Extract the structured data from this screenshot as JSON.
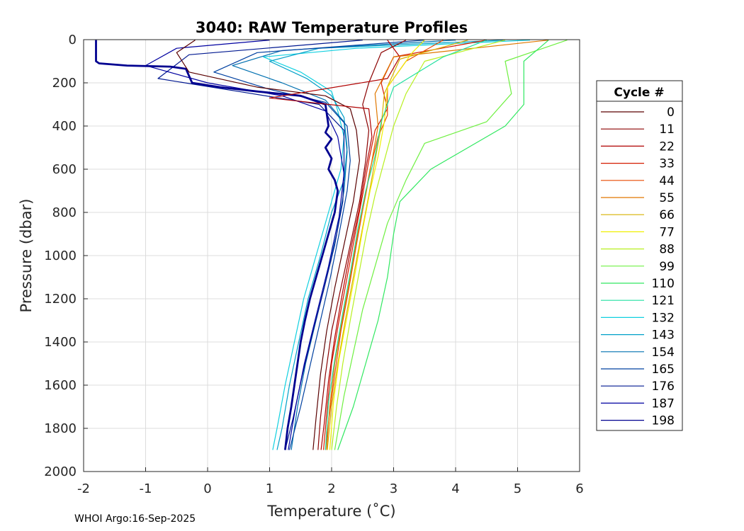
{
  "chart_data": {
    "type": "line",
    "title": "3040: RAW Temperature Profiles",
    "xlabel": "Temperature (˚C)",
    "ylabel": "Pressure (dbar)",
    "xlim": [
      -2,
      6
    ],
    "ylim": [
      0,
      2000
    ],
    "y_reversed": true,
    "grid": true,
    "x_ticks": [
      "-2",
      "-1",
      "0",
      "1",
      "2",
      "3",
      "4",
      "5",
      "6"
    ],
    "y_ticks": [
      "0",
      "200",
      "400",
      "600",
      "800",
      "1000",
      "1200",
      "1400",
      "1600",
      "1800",
      "2000"
    ],
    "legend": {
      "title": "Cycle #",
      "placement": "right-outside",
      "entries": [
        {
          "label": "0",
          "color": "#5a0000"
        },
        {
          "label": "11",
          "color": "#8b0000"
        },
        {
          "label": "22",
          "color": "#b00000"
        },
        {
          "label": "33",
          "color": "#d41a00"
        },
        {
          "label": "44",
          "color": "#e84800"
        },
        {
          "label": "55",
          "color": "#e07800"
        },
        {
          "label": "66",
          "color": "#d6b000"
        },
        {
          "label": "77",
          "color": "#f0f000"
        },
        {
          "label": "88",
          "color": "#b8f020"
        },
        {
          "label": "99",
          "color": "#6ef040"
        },
        {
          "label": "110",
          "color": "#30e860"
        },
        {
          "label": "121",
          "color": "#20e0a0"
        },
        {
          "label": "132",
          "color": "#10d0e0"
        },
        {
          "label": "143",
          "color": "#00a0c8"
        },
        {
          "label": "154",
          "color": "#0070b0"
        },
        {
          "label": "165",
          "color": "#0040a0"
        },
        {
          "label": "176",
          "color": "#001890"
        },
        {
          "label": "187",
          "color": "#0000a0"
        },
        {
          "label": "198",
          "color": "#000090"
        }
      ]
    },
    "series": [
      {
        "name": "132",
        "color": "#10d0e0",
        "points": [
          [
            5.2,
            2
          ],
          [
            2.4,
            40
          ],
          [
            0.9,
            80
          ],
          [
            1.5,
            150
          ],
          [
            2.0,
            240
          ],
          [
            2.1,
            330
          ],
          [
            2.2,
            450
          ],
          [
            2.15,
            600
          ],
          [
            1.95,
            800
          ],
          [
            1.75,
            1000
          ],
          [
            1.55,
            1200
          ],
          [
            1.4,
            1400
          ],
          [
            1.25,
            1600
          ],
          [
            1.12,
            1800
          ],
          [
            1.05,
            1900
          ]
        ]
      },
      {
        "name": "143",
        "color": "#00a0c8",
        "points": [
          [
            4.8,
            2
          ],
          [
            1.8,
            40
          ],
          [
            1.0,
            100
          ],
          [
            1.6,
            180
          ],
          [
            2.0,
            260
          ],
          [
            2.2,
            360
          ],
          [
            2.25,
            500
          ],
          [
            2.2,
            650
          ],
          [
            2.0,
            800
          ],
          [
            1.82,
            1000
          ],
          [
            1.62,
            1200
          ],
          [
            1.47,
            1400
          ],
          [
            1.32,
            1600
          ],
          [
            1.2,
            1800
          ],
          [
            1.12,
            1900
          ]
        ]
      },
      {
        "name": "154",
        "color": "#0070b0",
        "points": [
          [
            4.0,
            2
          ],
          [
            1.2,
            50
          ],
          [
            0.4,
            120
          ],
          [
            1.2,
            200
          ],
          [
            1.9,
            280
          ],
          [
            2.2,
            380
          ],
          [
            2.25,
            520
          ],
          [
            2.2,
            700
          ],
          [
            2.08,
            900
          ],
          [
            1.92,
            1100
          ],
          [
            1.75,
            1300
          ],
          [
            1.58,
            1500
          ],
          [
            1.45,
            1700
          ],
          [
            1.35,
            1900
          ]
        ]
      },
      {
        "name": "165",
        "color": "#0040a0",
        "points": [
          [
            3.5,
            2
          ],
          [
            0.8,
            60
          ],
          [
            0.1,
            150
          ],
          [
            1.0,
            230
          ],
          [
            1.9,
            290
          ],
          [
            2.25,
            400
          ],
          [
            2.3,
            560
          ],
          [
            2.25,
            700
          ],
          [
            2.12,
            900
          ],
          [
            1.98,
            1100
          ],
          [
            1.82,
            1300
          ],
          [
            1.66,
            1500
          ],
          [
            1.5,
            1700
          ],
          [
            1.32,
            1900
          ]
        ]
      },
      {
        "name": "176",
        "color": "#001890",
        "points": [
          [
            2.5,
            2
          ],
          [
            -0.3,
            70
          ],
          [
            -0.8,
            180
          ],
          [
            0.5,
            240
          ],
          [
            1.8,
            300
          ],
          [
            2.2,
            420
          ],
          [
            2.2,
            600
          ],
          [
            2.18,
            750
          ],
          [
            2.05,
            950
          ],
          [
            1.88,
            1150
          ],
          [
            1.7,
            1350
          ],
          [
            1.53,
            1550
          ],
          [
            1.38,
            1750
          ],
          [
            1.25,
            1900
          ]
        ]
      },
      {
        "name": "187",
        "color": "#0000a0",
        "points": [
          [
            1.0,
            2
          ],
          [
            -0.5,
            40
          ],
          [
            -1.0,
            120
          ],
          [
            0.0,
            200
          ],
          [
            1.2,
            260
          ],
          [
            1.9,
            330
          ],
          [
            2.1,
            450
          ],
          [
            2.2,
            620
          ],
          [
            2.12,
            820
          ],
          [
            1.95,
            1050
          ],
          [
            1.75,
            1280
          ],
          [
            1.56,
            1500
          ],
          [
            1.42,
            1700
          ],
          [
            1.3,
            1900
          ]
        ]
      },
      {
        "name": "198",
        "color": "#000090",
        "width": 2.8,
        "points": [
          [
            -1.8,
            2
          ],
          [
            -1.8,
            100
          ],
          [
            -1.75,
            110
          ],
          [
            -1.3,
            120
          ],
          [
            -0.6,
            125
          ],
          [
            -0.35,
            135
          ],
          [
            -0.25,
            200
          ],
          [
            0.2,
            220
          ],
          [
            0.8,
            240
          ],
          [
            1.5,
            260
          ],
          [
            1.9,
            300
          ],
          [
            1.95,
            400
          ],
          [
            1.9,
            430
          ],
          [
            2.0,
            460
          ],
          [
            1.9,
            500
          ],
          [
            2.0,
            550
          ],
          [
            1.95,
            600
          ],
          [
            2.05,
            650
          ],
          [
            2.1,
            700
          ],
          [
            2.05,
            800
          ],
          [
            1.95,
            900
          ],
          [
            1.85,
            1000
          ],
          [
            1.75,
            1100
          ],
          [
            1.65,
            1200
          ],
          [
            1.57,
            1300
          ],
          [
            1.5,
            1400
          ],
          [
            1.45,
            1500
          ],
          [
            1.4,
            1600
          ],
          [
            1.35,
            1700
          ],
          [
            1.29,
            1800
          ],
          [
            1.25,
            1900
          ]
        ]
      },
      {
        "name": "0",
        "color": "#5a0000",
        "points": [
          [
            -0.2,
            2
          ],
          [
            -0.5,
            60
          ],
          [
            -0.3,
            150
          ],
          [
            0.8,
            220
          ],
          [
            1.9,
            260
          ],
          [
            2.3,
            320
          ],
          [
            2.4,
            420
          ],
          [
            2.45,
            560
          ],
          [
            2.35,
            750
          ],
          [
            2.2,
            950
          ],
          [
            2.05,
            1150
          ],
          [
            1.92,
            1350
          ],
          [
            1.82,
            1550
          ],
          [
            1.75,
            1750
          ],
          [
            1.7,
            1900
          ]
        ]
      },
      {
        "name": "11",
        "color": "#8b0000",
        "points": [
          [
            3.2,
            2
          ],
          [
            2.8,
            60
          ],
          [
            2.6,
            200
          ],
          [
            2.5,
            300
          ],
          [
            2.6,
            420
          ],
          [
            2.55,
            560
          ],
          [
            2.45,
            750
          ],
          [
            2.3,
            950
          ],
          [
            2.15,
            1150
          ],
          [
            2.0,
            1350
          ],
          [
            1.9,
            1550
          ],
          [
            1.82,
            1750
          ],
          [
            1.78,
            1900
          ]
        ]
      },
      {
        "name": "22",
        "color": "#b00000",
        "points": [
          [
            2.9,
            2
          ],
          [
            3.1,
            80
          ],
          [
            2.9,
            180
          ],
          [
            1.0,
            270
          ],
          [
            2.6,
            320
          ],
          [
            2.65,
            450
          ],
          [
            2.55,
            600
          ],
          [
            2.45,
            780
          ],
          [
            2.3,
            980
          ],
          [
            2.17,
            1180
          ],
          [
            2.05,
            1380
          ],
          [
            1.95,
            1580
          ],
          [
            1.88,
            1780
          ],
          [
            1.83,
            1900
          ]
        ]
      },
      {
        "name": "33",
        "color": "#d41a00",
        "points": [
          [
            4.5,
            2
          ],
          [
            3.0,
            80
          ],
          [
            2.8,
            200
          ],
          [
            2.9,
            320
          ],
          [
            2.7,
            420
          ],
          [
            2.6,
            560
          ],
          [
            2.5,
            720
          ],
          [
            2.38,
            900
          ],
          [
            2.25,
            1100
          ],
          [
            2.12,
            1300
          ],
          [
            2.0,
            1500
          ],
          [
            1.93,
            1700
          ],
          [
            1.87,
            1900
          ]
        ]
      },
      {
        "name": "44",
        "color": "#e84800",
        "points": [
          [
            3.8,
            2
          ],
          [
            3.2,
            100
          ],
          [
            2.9,
            220
          ],
          [
            2.9,
            350
          ],
          [
            2.75,
            450
          ],
          [
            2.62,
            600
          ],
          [
            2.52,
            760
          ],
          [
            2.4,
            950
          ],
          [
            2.28,
            1150
          ],
          [
            2.15,
            1350
          ],
          [
            2.05,
            1550
          ],
          [
            1.96,
            1750
          ],
          [
            1.9,
            1900
          ]
        ]
      },
      {
        "name": "55",
        "color": "#e07800",
        "points": [
          [
            5.5,
            2
          ],
          [
            3.0,
            80
          ],
          [
            2.7,
            250
          ],
          [
            2.75,
            400
          ],
          [
            2.65,
            560
          ],
          [
            2.55,
            720
          ],
          [
            2.42,
            900
          ],
          [
            2.3,
            1100
          ],
          [
            2.17,
            1300
          ],
          [
            2.05,
            1500
          ],
          [
            1.97,
            1700
          ],
          [
            1.92,
            1900
          ]
        ]
      },
      {
        "name": "66",
        "color": "#d6b000",
        "points": [
          [
            4.2,
            2
          ],
          [
            3.1,
            90
          ],
          [
            2.85,
            250
          ],
          [
            2.8,
            400
          ],
          [
            2.7,
            560
          ],
          [
            2.6,
            720
          ],
          [
            2.48,
            900
          ],
          [
            2.35,
            1100
          ],
          [
            2.22,
            1300
          ],
          [
            2.1,
            1500
          ],
          [
            2.0,
            1700
          ],
          [
            1.93,
            1900
          ]
        ]
      },
      {
        "name": "77",
        "color": "#f0f000",
        "points": [
          [
            3.5,
            2
          ],
          [
            3.3,
            60
          ],
          [
            2.9,
            220
          ],
          [
            2.85,
            380
          ],
          [
            2.75,
            540
          ],
          [
            2.62,
            700
          ],
          [
            2.5,
            880
          ],
          [
            2.38,
            1080
          ],
          [
            2.25,
            1280
          ],
          [
            2.12,
            1480
          ],
          [
            2.03,
            1680
          ],
          [
            1.97,
            1900
          ]
        ]
      },
      {
        "name": "88",
        "color": "#b8f020",
        "points": [
          [
            4.8,
            2
          ],
          [
            3.5,
            100
          ],
          [
            3.2,
            250
          ],
          [
            3.0,
            400
          ],
          [
            2.85,
            560
          ],
          [
            2.7,
            720
          ],
          [
            2.56,
            900
          ],
          [
            2.43,
            1100
          ],
          [
            2.3,
            1300
          ],
          [
            2.18,
            1500
          ],
          [
            2.08,
            1700
          ],
          [
            2.0,
            1900
          ]
        ]
      },
      {
        "name": "99",
        "color": "#6ef040",
        "points": [
          [
            5.8,
            2
          ],
          [
            4.8,
            100
          ],
          [
            4.9,
            250
          ],
          [
            4.5,
            380
          ],
          [
            3.5,
            480
          ],
          [
            3.2,
            650
          ],
          [
            2.9,
            850
          ],
          [
            2.7,
            1050
          ],
          [
            2.5,
            1250
          ],
          [
            2.35,
            1450
          ],
          [
            2.2,
            1650
          ],
          [
            2.05,
            1900
          ]
        ]
      },
      {
        "name": "110",
        "color": "#30e860",
        "points": [
          [
            5.5,
            2
          ],
          [
            5.1,
            100
          ],
          [
            5.1,
            300
          ],
          [
            4.8,
            400
          ],
          [
            4.2,
            500
          ],
          [
            3.6,
            600
          ],
          [
            3.1,
            750
          ],
          [
            3.0,
            900
          ],
          [
            2.9,
            1100
          ],
          [
            2.75,
            1300
          ],
          [
            2.55,
            1500
          ],
          [
            2.35,
            1700
          ],
          [
            2.1,
            1900
          ]
        ]
      },
      {
        "name": "121",
        "color": "#20e0a0",
        "points": [
          [
            4.5,
            2
          ],
          [
            3.8,
            80
          ],
          [
            3.0,
            220
          ],
          [
            2.8,
            380
          ],
          [
            2.7,
            540
          ],
          [
            2.55,
            700
          ],
          [
            2.42,
            880
          ],
          [
            2.3,
            1080
          ],
          [
            2.17,
            1280
          ],
          [
            2.05,
            1480
          ],
          [
            1.95,
            1680
          ],
          [
            1.9,
            1900
          ]
        ]
      }
    ],
    "annotation": "WHOI Argo:16-Sep-2025"
  }
}
